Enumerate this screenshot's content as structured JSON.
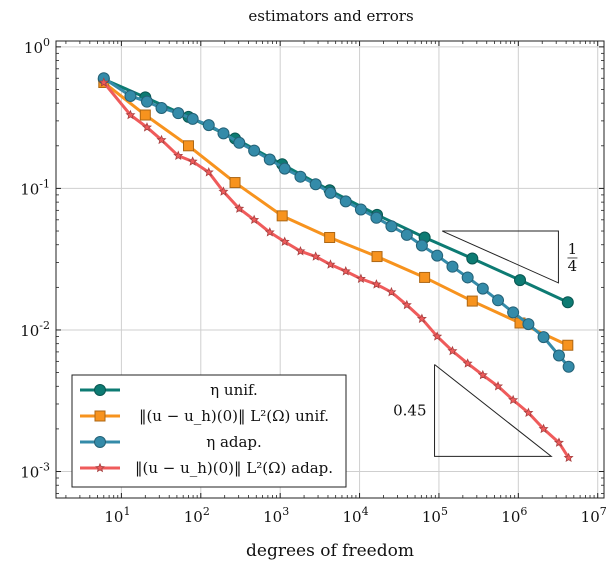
{
  "chart_data": {
    "type": "line",
    "title": "estimators and errors",
    "xlabel": "degrees of freedom",
    "ylabel": "",
    "xscale": "log",
    "yscale": "log",
    "xlim": [
      1.5,
      12000000
    ],
    "ylim": [
      0.00065,
      1.1
    ],
    "grid": true,
    "legend_position": "bottom-left",
    "x_ticks": [
      {
        "base": "10",
        "exp": "1",
        "value": 10
      },
      {
        "base": "10",
        "exp": "2",
        "value": 100
      },
      {
        "base": "10",
        "exp": "3",
        "value": 1000
      },
      {
        "base": "10",
        "exp": "4",
        "value": 10000
      },
      {
        "base": "10",
        "exp": "5",
        "value": 100000
      },
      {
        "base": "10",
        "exp": "6",
        "value": 1000000
      },
      {
        "base": "10",
        "exp": "7",
        "value": 10000000
      }
    ],
    "y_ticks": [
      {
        "base": "10",
        "exp": "0",
        "value": 1
      },
      {
        "base": "10",
        "exp": "-1",
        "value": 0.1
      },
      {
        "base": "10",
        "exp": "-2",
        "value": 0.01
      },
      {
        "base": "10",
        "exp": "-3",
        "value": 0.001
      }
    ],
    "series": [
      {
        "name": "η unif.",
        "legend_label": "η unif.",
        "color": "#0d7b73",
        "marker": "circle",
        "x": [
          6,
          20,
          70,
          270,
          1060,
          4200,
          16600,
          66000,
          263000,
          1050000,
          4200000
        ],
        "values": [
          0.59,
          0.44,
          0.32,
          0.225,
          0.148,
          0.097,
          0.065,
          0.045,
          0.032,
          0.0225,
          0.0157
        ]
      },
      {
        "name": "‖(u − u_h)(0)‖_{L²(Ω)} unif.",
        "legend_label": "‖(u − u_h)(0)‖ L²(Ω) unif.",
        "color": "#f7931e",
        "marker": "square",
        "x": [
          6,
          20,
          70,
          270,
          1060,
          4200,
          16600,
          66000,
          263000,
          1050000,
          4200000
        ],
        "values": [
          0.56,
          0.33,
          0.2,
          0.11,
          0.064,
          0.045,
          0.033,
          0.0235,
          0.016,
          0.0112,
          0.0078
        ]
      },
      {
        "name": "η adap.",
        "legend_label": "η adap.",
        "color": "#348ba9",
        "marker": "circle",
        "x": [
          6,
          13,
          21,
          32,
          52,
          79,
          126,
          193,
          305,
          470,
          740,
          1140,
          1800,
          2800,
          4300,
          6700,
          10400,
          16300,
          25200,
          39400,
          61000,
          95000,
          148000,
          230000,
          357000,
          555000,
          860000,
          1340000,
          2080000,
          3250000,
          4300000
        ],
        "values": [
          0.6,
          0.45,
          0.41,
          0.37,
          0.34,
          0.31,
          0.28,
          0.245,
          0.21,
          0.185,
          0.16,
          0.138,
          0.121,
          0.107,
          0.093,
          0.081,
          0.071,
          0.062,
          0.054,
          0.047,
          0.0395,
          0.0335,
          0.028,
          0.0235,
          0.0196,
          0.0162,
          0.0133,
          0.011,
          0.0089,
          0.0066,
          0.0055
        ]
      },
      {
        "name": "‖(u − u_h)(0)‖_{L²(Ω)} adap.",
        "legend_label": "‖(u − u_h)(0)‖ L²(Ω) adap.",
        "color": "#ef5b5b",
        "marker": "star",
        "x": [
          6,
          13,
          21,
          32,
          52,
          79,
          126,
          193,
          305,
          470,
          740,
          1140,
          1800,
          2800,
          4300,
          6700,
          10400,
          16300,
          25200,
          39400,
          61000,
          95000,
          148000,
          230000,
          357000,
          555000,
          860000,
          1340000,
          2080000,
          3250000,
          4300000
        ],
        "values": [
          0.56,
          0.33,
          0.27,
          0.22,
          0.17,
          0.155,
          0.13,
          0.095,
          0.072,
          0.06,
          0.049,
          0.042,
          0.036,
          0.033,
          0.029,
          0.026,
          0.023,
          0.021,
          0.0185,
          0.015,
          0.012,
          0.009,
          0.0071,
          0.0058,
          0.0048,
          0.004,
          0.0032,
          0.0026,
          0.002,
          0.0016,
          0.00125
        ]
      }
    ],
    "slope_triangles": [
      {
        "label_num": "1",
        "label_den": "4",
        "x0": 110000,
        "x1": 3200000,
        "y_top": 0.05,
        "y_bottom": 0.0215,
        "orientation": "upper"
      },
      {
        "label": "0.45",
        "x0": 88000,
        "x1": 2600000,
        "y_top": 0.0057,
        "y_bottom": 0.00128,
        "orientation": "lower"
      }
    ]
  }
}
